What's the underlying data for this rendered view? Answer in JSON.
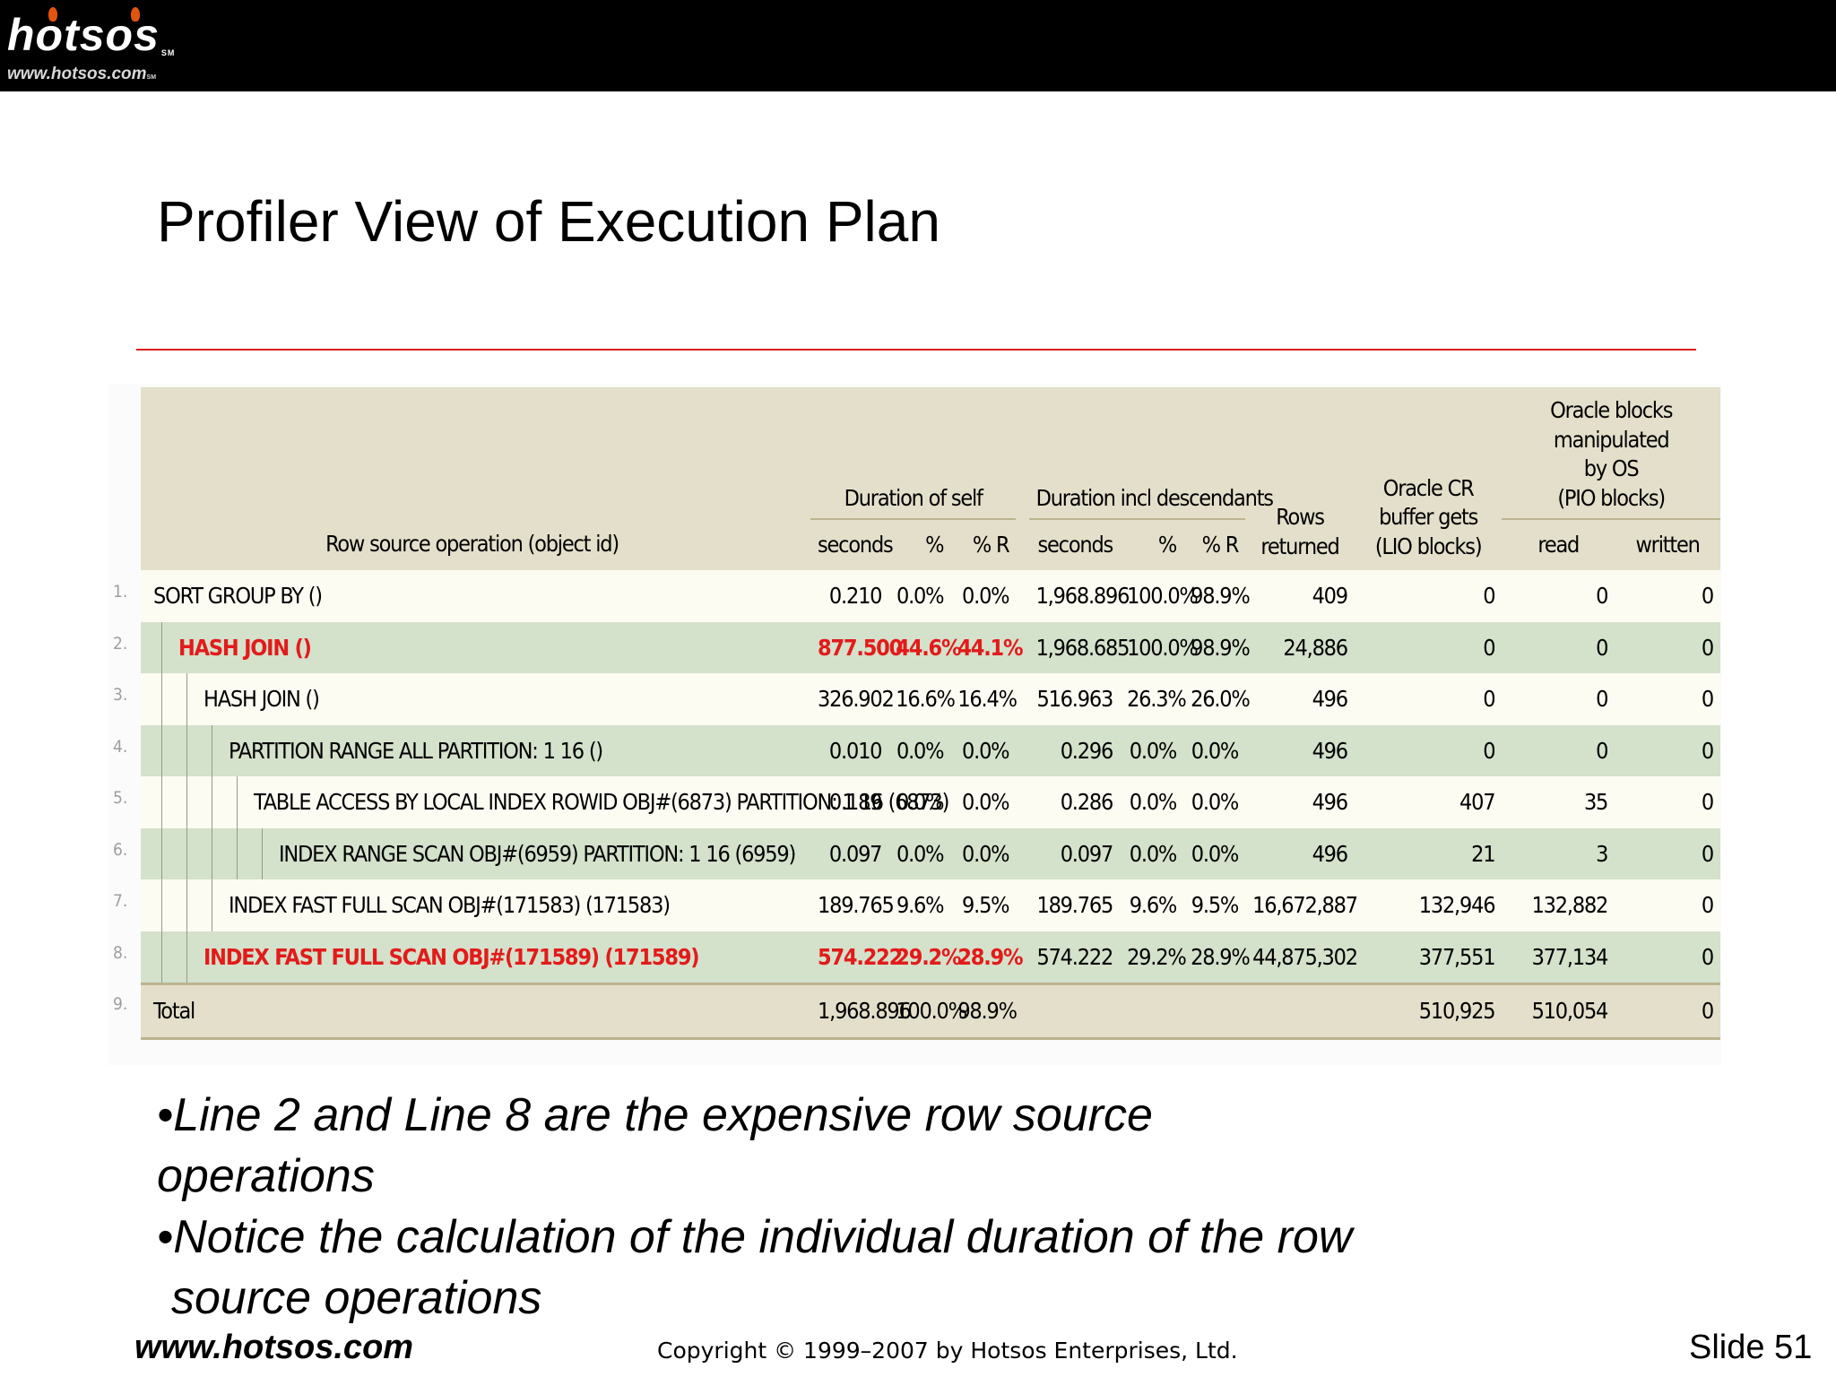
{
  "header": {
    "logo_text": "hotsos",
    "logo_mark": "SM",
    "logo_url": "www.hotsos.com"
  },
  "slide": {
    "title": "Profiler View of Execution Plan",
    "accent_color": "#d91f1f"
  },
  "table": {
    "group_headers": {
      "duration_self": "Duration of self",
      "duration_incl": "Duration incl descendants",
      "rows": "Rows\nreturned",
      "cr_gets": "Oracle CR\nbuffer gets\n(LIO blocks)",
      "os_blocks": "Oracle blocks manipulated\nby OS\n(PIO blocks)"
    },
    "columns": {
      "op": "Row source operation (object id)",
      "self_seconds": "seconds",
      "self_pct": "%",
      "self_pctr": "% R",
      "incl_seconds": "seconds",
      "incl_pct": "%",
      "incl_pctr": "% R",
      "read": "read",
      "written": "written"
    },
    "line_numbers": [
      "1.",
      "2.",
      "3.",
      "4.",
      "5.",
      "6.",
      "7.",
      "8.",
      "9."
    ],
    "rows": [
      {
        "op": "SORT GROUP BY ()",
        "self_seconds": "0.210",
        "self_pct": "0.0%",
        "self_pctr": "0.0%",
        "incl_seconds": "1,968.896",
        "incl_pct": "100.0%",
        "incl_pctr": "98.9%",
        "rows": "409",
        "cr": "0",
        "read": "0",
        "written": "0"
      },
      {
        "op": "HASH JOIN ()",
        "self_seconds": "877.500",
        "self_pct": "44.6%",
        "self_pctr": "44.1%",
        "incl_seconds": "1,968.685",
        "incl_pct": "100.0%",
        "incl_pctr": "98.9%",
        "rows": "24,886",
        "cr": "0",
        "read": "0",
        "written": "0"
      },
      {
        "op": "HASH JOIN ()",
        "self_seconds": "326.902",
        "self_pct": "16.6%",
        "self_pctr": "16.4%",
        "incl_seconds": "516.963",
        "incl_pct": "26.3%",
        "incl_pctr": "26.0%",
        "rows": "496",
        "cr": "0",
        "read": "0",
        "written": "0"
      },
      {
        "op": "PARTITION RANGE ALL PARTITION: 1 16 ()",
        "self_seconds": "0.010",
        "self_pct": "0.0%",
        "self_pctr": "0.0%",
        "incl_seconds": "0.296",
        "incl_pct": "0.0%",
        "incl_pctr": "0.0%",
        "rows": "496",
        "cr": "0",
        "read": "0",
        "written": "0"
      },
      {
        "op": "TABLE ACCESS BY LOCAL INDEX ROWID OBJ#(6873) PARTITION: 1 16 (6873)",
        "self_seconds": "0.189",
        "self_pct": "0.0%",
        "self_pctr": "0.0%",
        "incl_seconds": "0.286",
        "incl_pct": "0.0%",
        "incl_pctr": "0.0%",
        "rows": "496",
        "cr": "407",
        "read": "35",
        "written": "0"
      },
      {
        "op": "INDEX RANGE SCAN OBJ#(6959) PARTITION: 1 16 (6959)",
        "self_seconds": "0.097",
        "self_pct": "0.0%",
        "self_pctr": "0.0%",
        "incl_seconds": "0.097",
        "incl_pct": "0.0%",
        "incl_pctr": "0.0%",
        "rows": "496",
        "cr": "21",
        "read": "3",
        "written": "0"
      },
      {
        "op": "INDEX FAST FULL SCAN OBJ#(171583) (171583)",
        "self_seconds": "189.765",
        "self_pct": "9.6%",
        "self_pctr": "9.5%",
        "incl_seconds": "189.765",
        "incl_pct": "9.6%",
        "incl_pctr": "9.5%",
        "rows": "16,672,887",
        "cr": "132,946",
        "read": "132,882",
        "written": "0"
      },
      {
        "op": "INDEX FAST FULL SCAN OBJ#(171589) (171589)",
        "self_seconds": "574.222",
        "self_pct": "29.2%",
        "self_pctr": "28.9%",
        "incl_seconds": "574.222",
        "incl_pct": "29.2%",
        "incl_pctr": "28.9%",
        "rows": "44,875,302",
        "cr": "377,551",
        "read": "377,134",
        "written": "0"
      },
      {
        "op": "Total",
        "self_seconds": "1,968.896",
        "self_pct": "100.0%",
        "self_pctr": "98.9%",
        "incl_seconds": "",
        "incl_pct": "",
        "incl_pctr": "",
        "rows": "",
        "cr": "510,925",
        "read": "510,054",
        "written": "0"
      }
    ]
  },
  "bullets": {
    "b1_line1": "•Line 2 and Line 8 are the expensive row source",
    "b1_line2": "operations",
    "b2_line1": "•Notice the calculation of the individual duration of the row",
    "b2_line2": "source operations"
  },
  "footer": {
    "url": "www.hotsos.com",
    "copyright": "Copyright © 1999–2007 by Hotsos Enterprises, Ltd.",
    "slide_number": "Slide 51"
  }
}
